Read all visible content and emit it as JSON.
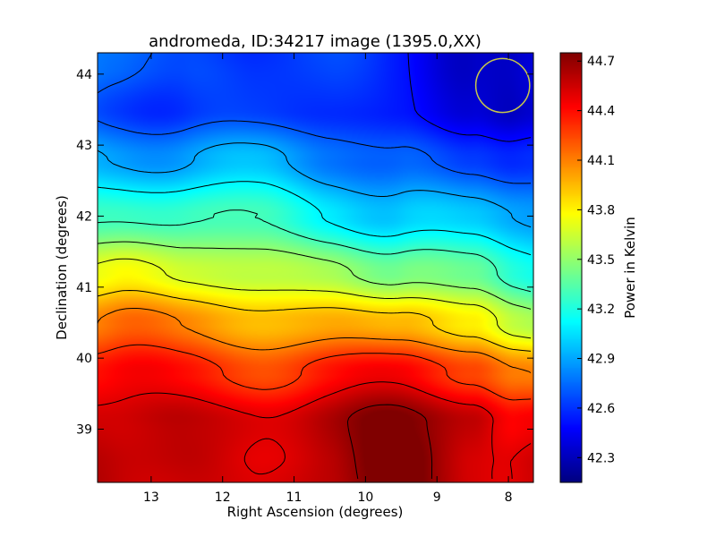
{
  "chart_data": {
    "type": "heatmap",
    "title": "andromeda, ID:34217 image (1395.0,XX)",
    "xlabel": "Right Ascension (degrees)",
    "ylabel": "Declination (degrees)",
    "xlim": [
      13.75,
      7.65
    ],
    "ylim": [
      38.25,
      44.3
    ],
    "x_ticks": [
      13,
      12,
      11,
      10,
      9,
      8
    ],
    "x_tick_labels": [
      "13",
      "12",
      "11",
      "10",
      "9",
      "8"
    ],
    "y_ticks": [
      39,
      40,
      41,
      42,
      43,
      44
    ],
    "y_tick_labels": [
      "39",
      "40",
      "41",
      "42",
      "43",
      "44"
    ],
    "colorbar": {
      "label": "Power in Kelvin",
      "range": [
        42.15,
        44.75
      ],
      "ticks": [
        42.3,
        42.6,
        42.9,
        43.2,
        43.5,
        43.8,
        44.1,
        44.4,
        44.7
      ],
      "tick_labels": [
        "42.3",
        "42.6",
        "42.9",
        "43.2",
        "43.5",
        "43.8",
        "44.1",
        "44.4",
        "44.7"
      ],
      "colormap": "jet"
    },
    "field_samples": {
      "x": [
        13.5,
        12.5,
        11.5,
        10.5,
        9.5,
        8.5,
        7.9
      ],
      "y": [
        44.1,
        43.5,
        42.8,
        42.0,
        41.2,
        40.5,
        39.8,
        39.1,
        38.5
      ],
      "z": [
        [
          42.8,
          42.68,
          42.6,
          42.6,
          42.55,
          42.4,
          42.3
        ],
        [
          42.7,
          42.62,
          42.58,
          42.58,
          42.55,
          42.42,
          42.28
        ],
        [
          42.95,
          42.9,
          42.88,
          42.82,
          42.75,
          42.62,
          42.55
        ],
        [
          43.3,
          43.28,
          43.22,
          43.15,
          43.02,
          42.92,
          42.88
        ],
        [
          43.75,
          43.62,
          43.6,
          43.6,
          43.45,
          43.3,
          43.2
        ],
        [
          44.12,
          44.02,
          44.0,
          44.0,
          43.95,
          43.75,
          43.6
        ],
        [
          44.4,
          44.33,
          44.32,
          44.37,
          44.4,
          44.26,
          44.12
        ],
        [
          44.52,
          44.57,
          44.59,
          44.62,
          44.7,
          44.66,
          44.47
        ],
        [
          44.56,
          44.61,
          44.52,
          44.58,
          44.76,
          44.62,
          44.57
        ]
      ]
    },
    "contour_levels": [
      42.5,
      42.7,
      42.9,
      43.1,
      43.3,
      43.5,
      43.7,
      43.9,
      44.1,
      44.3,
      44.5,
      44.7
    ],
    "annotation": {
      "shape": "circle",
      "ra": 8.08,
      "dec": 43.84,
      "radius_deg": 0.38,
      "color": "#c8c84a"
    }
  }
}
